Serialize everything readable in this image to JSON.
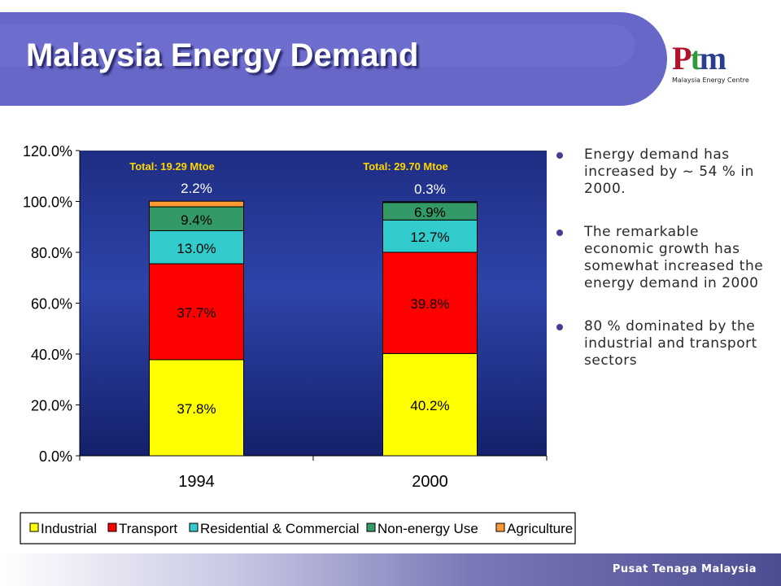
{
  "slide": {
    "title": "Malaysia Energy Demand",
    "logo_text": "Ptm",
    "logo_caption": "Malaysia Energy Centre",
    "footer_text": "Pusat Tenaga Malaysia",
    "bullets": [
      "Energy demand has increased by ~ 54 % in 2000.",
      "The remarkable economic growth has somewhat increased the energy demand in 2000",
      "80 % dominated by the industrial and transport sectors"
    ],
    "colors": {
      "banner": "#6767c8",
      "plot_bg": "#2a3c96"
    }
  },
  "chart_data": {
    "type": "bar",
    "stacked": true,
    "categories": [
      "1994",
      "2000"
    ],
    "series": [
      {
        "name": "Industrial",
        "values": [
          37.8,
          40.2
        ],
        "labels": [
          "37.8%",
          "40.2%"
        ],
        "color": "#ffff00"
      },
      {
        "name": "Transport",
        "values": [
          37.7,
          39.8
        ],
        "labels": [
          "37.7%",
          "39.8%"
        ],
        "color": "#ff0000"
      },
      {
        "name": "Residential & Commercial",
        "values": [
          13.0,
          12.7
        ],
        "labels": [
          "13.0%",
          "12.7%"
        ],
        "color": "#33cccc"
      },
      {
        "name": "Non-energy Use",
        "values": [
          9.4,
          6.9
        ],
        "labels": [
          "9.4%",
          "6.9%"
        ],
        "color": "#339966"
      },
      {
        "name": "Agriculture",
        "values": [
          2.2,
          0.3
        ],
        "labels": [
          "2.2%",
          "0.3%"
        ],
        "color": "#ff9933"
      }
    ],
    "totals": [
      "Total: 19.29 Mtoe",
      "Total: 29.70 Mtoe"
    ],
    "yticks": [
      "0.0%",
      "20.0%",
      "40.0%",
      "60.0%",
      "80.0%",
      "100.0%",
      "120.0%"
    ],
    "ylim": [
      0,
      120
    ],
    "legend_position": "bottom",
    "grid": false
  }
}
